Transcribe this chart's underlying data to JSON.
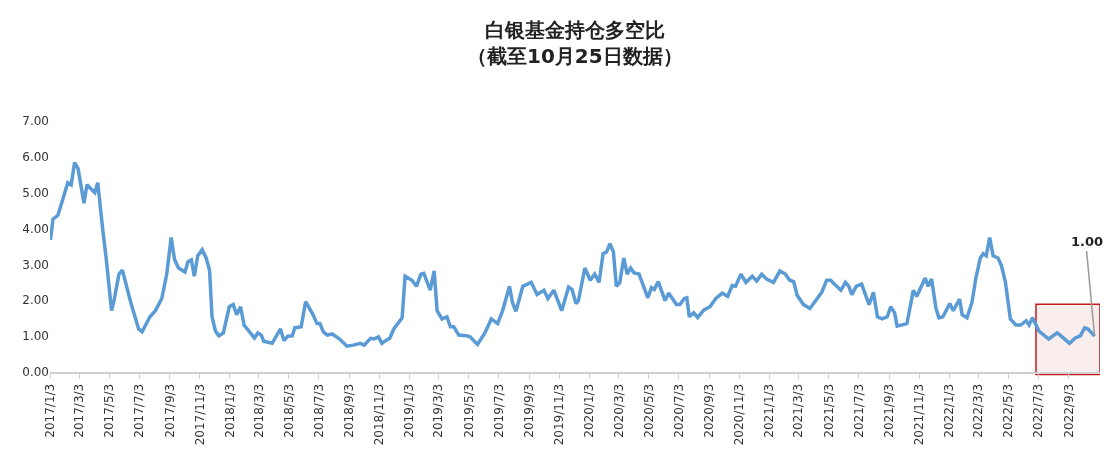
{
  "chart_data": {
    "type": "line",
    "title": "白银基金持仓多空比",
    "subtitle": "（截至10月25日数据）",
    "x": [
      "2017-01-04",
      "2017-01-09",
      "2017-01-19",
      "2017-01-29",
      "2017-02-08",
      "2017-02-15",
      "2017-02-22",
      "2017-03-01",
      "2017-03-13",
      "2017-03-19",
      "2017-04-04",
      "2017-04-10",
      "2017-04-20",
      "2017-04-27",
      "2017-05-08",
      "2017-05-13",
      "2017-05-23",
      "2017-05-30",
      "2017-06-16",
      "2017-07-02",
      "2017-07-09",
      "2017-07-25",
      "2017-08-05",
      "2017-08-18",
      "2017-08-28",
      "2017-09-06",
      "2017-09-13",
      "2017-09-21",
      "2017-10-04",
      "2017-10-10",
      "2017-10-17",
      "2017-10-23",
      "2017-10-30",
      "2017-11-08",
      "2017-11-16",
      "2017-11-23",
      "2017-11-28",
      "2017-12-05",
      "2017-12-12",
      "2017-12-21",
      "2018-01-02",
      "2018-01-10",
      "2018-01-17",
      "2018-01-25",
      "2018-02-01",
      "2018-02-11",
      "2018-02-22",
      "2018-03-01",
      "2018-03-08",
      "2018-03-13",
      "2018-03-30",
      "2018-04-16",
      "2018-04-23",
      "2018-05-01",
      "2018-05-10",
      "2018-05-15",
      "2018-05-28",
      "2018-06-06",
      "2018-06-21",
      "2018-06-29",
      "2018-07-05",
      "2018-07-12",
      "2018-07-20",
      "2018-07-30",
      "2018-08-14",
      "2018-08-29",
      "2018-09-11",
      "2018-09-25",
      "2018-10-03",
      "2018-10-16",
      "2018-10-23",
      "2018-11-01",
      "2018-11-08",
      "2018-11-16",
      "2018-11-24",
      "2018-12-02",
      "2018-12-19",
      "2018-12-25",
      "2019-01-08",
      "2019-01-17",
      "2019-01-26",
      "2019-02-01",
      "2019-02-14",
      "2019-02-22",
      "2019-02-28",
      "2019-03-10",
      "2019-03-20",
      "2019-03-27",
      "2019-04-03",
      "2019-04-13",
      "2019-04-29",
      "2019-05-06",
      "2019-05-21",
      "2019-06-05",
      "2019-06-18",
      "2019-07-01",
      "2019-07-11",
      "2019-07-25",
      "2019-07-31",
      "2019-08-07",
      "2019-08-21",
      "2019-09-07",
      "2019-09-19",
      "2019-10-03",
      "2019-10-11",
      "2019-10-23",
      "2019-11-08",
      "2019-11-22",
      "2019-11-29",
      "2019-12-07",
      "2019-12-12",
      "2019-12-25",
      "2020-01-05",
      "2020-01-14",
      "2020-01-23",
      "2020-01-31",
      "2020-02-07",
      "2020-02-14",
      "2020-02-21",
      "2020-02-27",
      "2020-03-05",
      "2020-03-13",
      "2020-03-20",
      "2020-03-27",
      "2020-04-03",
      "2020-04-13",
      "2020-05-01",
      "2020-05-08",
      "2020-05-14",
      "2020-05-22",
      "2020-06-05",
      "2020-06-12",
      "2020-06-28",
      "2020-07-05",
      "2020-07-14",
      "2020-07-19",
      "2020-07-24",
      "2020-08-02",
      "2020-08-10",
      "2020-08-23",
      "2020-09-04",
      "2020-09-16",
      "2020-09-29",
      "2020-10-10",
      "2020-10-19",
      "2020-10-26",
      "2020-11-06",
      "2020-11-16",
      "2020-11-29",
      "2020-12-08",
      "2020-12-18",
      "2020-12-28",
      "2021-01-11",
      "2021-01-24",
      "2021-02-04",
      "2021-02-13",
      "2021-02-21",
      "2021-02-28",
      "2021-03-13",
      "2021-03-26",
      "2021-04-19",
      "2021-04-29",
      "2021-05-07",
      "2021-05-15",
      "2021-05-28",
      "2021-06-06",
      "2021-06-13",
      "2021-06-19",
      "2021-06-28",
      "2021-07-09",
      "2021-07-24",
      "2021-08-02",
      "2021-08-10",
      "2021-08-20",
      "2021-08-30",
      "2021-09-06",
      "2021-09-14",
      "2021-09-19",
      "2021-10-09",
      "2021-10-22",
      "2021-10-29",
      "2021-11-15",
      "2021-11-21",
      "2021-11-28",
      "2021-12-07",
      "2021-12-13",
      "2021-12-21",
      "2022-01-04",
      "2022-01-11",
      "2022-01-24",
      "2022-01-29",
      "2022-02-08",
      "2022-02-18",
      "2022-02-26",
      "2022-03-07",
      "2022-03-13",
      "2022-03-19",
      "2022-03-26",
      "2022-04-02",
      "2022-04-12",
      "2022-04-19",
      "2022-04-27",
      "2022-05-07",
      "2022-05-18",
      "2022-05-28",
      "2022-06-08",
      "2022-06-14",
      "2022-06-21",
      "2022-07-04",
      "2022-07-24",
      "2022-08-10",
      "2022-08-16",
      "2022-09-04",
      "2022-09-16",
      "2022-09-26",
      "2022-10-05",
      "2022-10-12",
      "2022-10-25"
    ],
    "series": [
      {
        "color": "#5b9bd5",
        "values": [
          3.69,
          4.26,
          4.37,
          4.82,
          5.28,
          5.22,
          5.84,
          5.67,
          4.71,
          5.22,
          5.0,
          5.28,
          3.98,
          3.18,
          1.71,
          1.99,
          2.73,
          2.84,
          1.94,
          1.2,
          1.12,
          1.54,
          1.71,
          2.05,
          2.73,
          3.75,
          3.13,
          2.9,
          2.79,
          3.07,
          3.13,
          2.67,
          3.24,
          3.41,
          3.18,
          2.84,
          1.54,
          1.14,
          1.01,
          1.09,
          1.82,
          1.88,
          1.6,
          1.82,
          1.31,
          1.14,
          0.95,
          1.09,
          1.03,
          0.86,
          0.8,
          1.2,
          0.88,
          1.0,
          1.01,
          1.23,
          1.26,
          1.96,
          1.6,
          1.35,
          1.35,
          1.12,
          1.03,
          1.06,
          0.92,
          0.72,
          0.75,
          0.8,
          0.75,
          0.94,
          0.92,
          0.98,
          0.8,
          0.88,
          0.94,
          1.2,
          1.51,
          2.67,
          2.56,
          2.39,
          2.73,
          2.75,
          2.28,
          2.82,
          1.71,
          1.48,
          1.54,
          1.26,
          1.26,
          1.03,
          1.01,
          0.98,
          0.77,
          1.09,
          1.48,
          1.35,
          1.71,
          2.39,
          1.94,
          1.69,
          2.39,
          2.5,
          2.16,
          2.28,
          2.05,
          2.28,
          1.71,
          2.37,
          2.3,
          1.91,
          1.99,
          2.9,
          2.56,
          2.73,
          2.5,
          3.3,
          3.35,
          3.58,
          3.35,
          2.39,
          2.5,
          3.18,
          2.73,
          2.9,
          2.76,
          2.73,
          2.07,
          2.35,
          2.3,
          2.52,
          1.99,
          2.2,
          1.88,
          1.88,
          2.05,
          2.07,
          1.54,
          1.65,
          1.52,
          1.73,
          1.82,
          2.05,
          2.2,
          2.11,
          2.41,
          2.39,
          2.73,
          2.5,
          2.67,
          2.54,
          2.73,
          2.59,
          2.5,
          2.82,
          2.73,
          2.56,
          2.52,
          2.14,
          1.88,
          1.77,
          2.22,
          2.56,
          2.56,
          2.45,
          2.28,
          2.5,
          2.39,
          2.16,
          2.39,
          2.45,
          1.88,
          2.22,
          1.54,
          1.48,
          1.54,
          1.82,
          1.65,
          1.28,
          1.35,
          2.28,
          2.11,
          2.62,
          2.39,
          2.59,
          1.77,
          1.51,
          1.54,
          1.91,
          1.71,
          2.03,
          1.6,
          1.51,
          1.94,
          2.62,
          3.18,
          3.3,
          3.24,
          3.75,
          3.24,
          3.18,
          2.96,
          2.5,
          1.48,
          1.31,
          1.31,
          1.43,
          1.31,
          1.51,
          1.14,
          0.92,
          1.09,
          1.03,
          0.8,
          0.95,
          1.01,
          1.23,
          1.2,
          1.0
        ]
      }
    ],
    "xlim": [
      "2017-01-03",
      "2022-11-05"
    ],
    "xticks": [
      {
        "value": "2017-01-03",
        "label": "2017/1/3"
      },
      {
        "value": "2017-03-03",
        "label": "2017/3/3"
      },
      {
        "value": "2017-05-03",
        "label": "2017/5/3"
      },
      {
        "value": "2017-07-03",
        "label": "2017/7/3"
      },
      {
        "value": "2017-09-03",
        "label": "2017/9/3"
      },
      {
        "value": "2017-11-03",
        "label": "2017/11/3"
      },
      {
        "value": "2018-01-03",
        "label": "2018/1/3"
      },
      {
        "value": "2018-03-03",
        "label": "2018/3/3"
      },
      {
        "value": "2018-05-03",
        "label": "2018/5/3"
      },
      {
        "value": "2018-07-03",
        "label": "2018/7/3"
      },
      {
        "value": "2018-09-03",
        "label": "2018/9/3"
      },
      {
        "value": "2018-11-03",
        "label": "2018/11/3"
      },
      {
        "value": "2019-01-03",
        "label": "2019/1/3"
      },
      {
        "value": "2019-03-03",
        "label": "2019/3/3"
      },
      {
        "value": "2019-05-03",
        "label": "2019/5/3"
      },
      {
        "value": "2019-07-03",
        "label": "2019/7/3"
      },
      {
        "value": "2019-09-03",
        "label": "2019/9/3"
      },
      {
        "value": "2019-11-03",
        "label": "2019/11/3"
      },
      {
        "value": "2020-01-03",
        "label": "2020/1/3"
      },
      {
        "value": "2020-03-03",
        "label": "2020/3/3"
      },
      {
        "value": "2020-05-03",
        "label": "2020/5/3"
      },
      {
        "value": "2020-07-03",
        "label": "2020/7/3"
      },
      {
        "value": "2020-09-03",
        "label": "2020/9/3"
      },
      {
        "value": "2020-11-03",
        "label": "2020/11/3"
      },
      {
        "value": "2021-01-03",
        "label": "2021/1/3"
      },
      {
        "value": "2021-03-03",
        "label": "2021/3/3"
      },
      {
        "value": "2021-05-03",
        "label": "2021/5/3"
      },
      {
        "value": "2021-07-03",
        "label": "2021/7/3"
      },
      {
        "value": "2021-09-03",
        "label": "2021/9/3"
      },
      {
        "value": "2021-11-03",
        "label": "2021/11/3"
      },
      {
        "value": "2022-01-03",
        "label": "2022/1/3"
      },
      {
        "value": "2022-03-03",
        "label": "2022/3/3"
      },
      {
        "value": "2022-05-03",
        "label": "2022/5/3"
      },
      {
        "value": "2022-07-03",
        "label": "2022/7/3"
      },
      {
        "value": "2022-09-03",
        "label": "2022/9/3"
      }
    ],
    "ylim": [
      0,
      7
    ],
    "yticks": [
      {
        "value": 0,
        "label": "0.00"
      },
      {
        "value": 1,
        "label": "1.00"
      },
      {
        "value": 2,
        "label": "2.00"
      },
      {
        "value": 3,
        "label": "3.00"
      },
      {
        "value": 4,
        "label": "4.00"
      },
      {
        "value": 5,
        "label": "5.00"
      },
      {
        "value": 6,
        "label": "6.00"
      },
      {
        "value": 7,
        "label": "7.00"
      }
    ],
    "annotations": [
      {
        "text": "1.00",
        "x": "2022-10-25",
        "y": 1.0
      }
    ],
    "bands": [
      {
        "axis": "x",
        "from": "2022-06-28",
        "to": "2022-11-05",
        "color": "#c00000"
      }
    ],
    "marker": "none",
    "line_style": "solid"
  }
}
